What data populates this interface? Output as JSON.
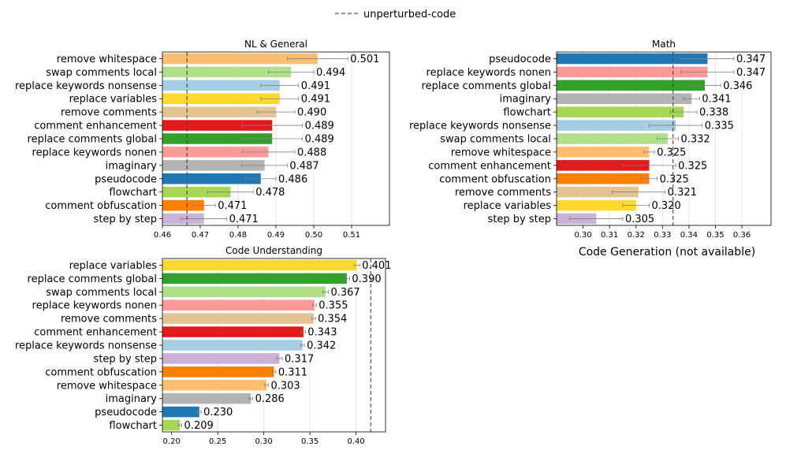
{
  "legend": {
    "label": "unperturbed-code"
  },
  "colors": {
    "remove whitespace": "#fdbf6f",
    "swap comments local": "#b2df8a",
    "replace keywords nonsense": "#a6cee3",
    "replace variables": "#ffd92f",
    "remove comments": "#e5c494",
    "comment enhancement": "#e31a1c",
    "replace comments global": "#33a02c",
    "replace keywords nonen": "#fb9a99",
    "imaginary": "#b3b3b3",
    "pseudocode": "#1f78b4",
    "flowchart": "#a6d854",
    "comment obfuscation": "#ff7f00",
    "step by step": "#cab2d6"
  },
  "na_panel": {
    "label": "Code Generation (not available)"
  },
  "chart_data": [
    {
      "type": "bar",
      "orientation": "horizontal",
      "title": "NL & General",
      "categories": [
        "remove whitespace",
        "swap comments local",
        "replace keywords nonsense",
        "replace variables",
        "remove comments",
        "comment enhancement",
        "replace comments global",
        "replace keywords nonen",
        "imaginary",
        "pseudocode",
        "flowchart",
        "comment obfuscation",
        "step by step"
      ],
      "values": [
        0.501,
        0.494,
        0.491,
        0.491,
        0.49,
        0.489,
        0.489,
        0.488,
        0.487,
        0.486,
        0.478,
        0.471,
        0.471
      ],
      "value_labels": [
        "0.501",
        "0.494",
        "0.491",
        "0.491",
        "0.490",
        "0.489",
        "0.489",
        "0.488",
        "0.487",
        "0.486",
        "0.478",
        "0.471",
        "0.471"
      ],
      "errors": [
        0.008,
        0.006,
        0.005,
        0.005,
        0.005,
        0.008,
        0.008,
        0.007,
        0.006,
        0.004,
        0.006,
        0.003,
        0.006
      ],
      "xlim": [
        0.46,
        0.52
      ],
      "xticks": [
        0.46,
        0.47,
        0.48,
        0.49,
        0.5,
        0.51
      ],
      "xtick_labels": [
        "0.46",
        "0.47",
        "0.48",
        "0.49",
        "0.50",
        "0.51"
      ],
      "reference": 0.4665
    },
    {
      "type": "bar",
      "orientation": "horizontal",
      "title": "Math",
      "categories": [
        "pseudocode",
        "replace keywords nonen",
        "replace comments global",
        "imaginary",
        "flowchart",
        "replace keywords nonsense",
        "swap comments local",
        "remove whitespace",
        "comment enhancement",
        "comment obfuscation",
        "remove comments",
        "replace variables",
        "step by step"
      ],
      "values": [
        0.347,
        0.347,
        0.346,
        0.341,
        0.338,
        0.335,
        0.332,
        0.325,
        0.325,
        0.325,
        0.321,
        0.32,
        0.305
      ],
      "value_labels": [
        "0.347",
        "0.347",
        "0.346",
        "0.341",
        "0.338",
        "0.335",
        "0.332",
        "0.325",
        "0.325",
        "0.325",
        "0.321",
        "0.320",
        "0.305"
      ],
      "errors": [
        0.01,
        0.01,
        0.006,
        0.003,
        0.005,
        0.01,
        0.004,
        0.002,
        0.01,
        0.003,
        0.01,
        0.005,
        0.01
      ],
      "xlim": [
        0.29,
        0.371
      ],
      "xticks": [
        0.3,
        0.31,
        0.32,
        0.33,
        0.34,
        0.35,
        0.36
      ],
      "xtick_labels": [
        "0.30",
        "0.31",
        "0.32",
        "0.33",
        "0.34",
        "0.35",
        "0.36"
      ],
      "reference": 0.334
    },
    {
      "type": "bar",
      "orientation": "horizontal",
      "title": "Code Understanding",
      "categories": [
        "replace variables",
        "replace comments global",
        "swap comments local",
        "replace keywords nonen",
        "remove comments",
        "comment enhancement",
        "replace keywords nonsense",
        "step by step",
        "comment obfuscation",
        "remove whitespace",
        "imaginary",
        "pseudocode",
        "flowchart"
      ],
      "values": [
        0.401,
        0.39,
        0.367,
        0.355,
        0.354,
        0.343,
        0.342,
        0.317,
        0.311,
        0.303,
        0.286,
        0.23,
        0.209
      ],
      "value_labels": [
        "0.401",
        "0.390",
        "0.367",
        "0.355",
        "0.354",
        "0.343",
        "0.342",
        "0.317",
        "0.311",
        "0.303",
        "0.286",
        "0.230",
        "0.209"
      ],
      "errors": [
        0.003,
        0.003,
        0.003,
        0.002,
        0.002,
        0.002,
        0.002,
        0.003,
        0.002,
        0.002,
        0.002,
        0.002,
        0.002
      ],
      "xlim": [
        0.19,
        0.432
      ],
      "xticks": [
        0.2,
        0.25,
        0.3,
        0.35,
        0.4
      ],
      "xtick_labels": [
        "0.20",
        "0.25",
        "0.30",
        "0.35",
        "0.40"
      ],
      "reference": 0.416
    }
  ]
}
